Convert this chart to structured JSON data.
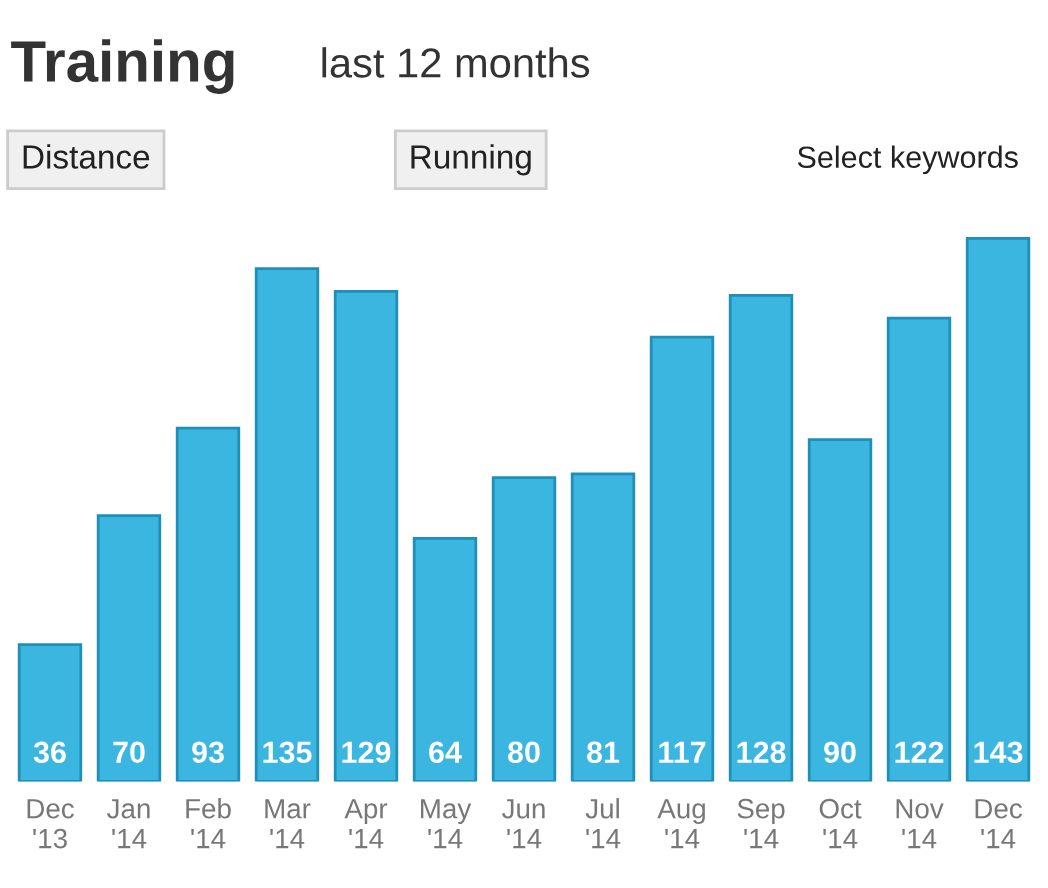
{
  "chart_data": {
    "type": "bar",
    "title": "Training",
    "subtitle": "last 12 months",
    "annotations": [
      "Distance",
      "Running",
      "Select keywords"
    ],
    "categories": [
      "Dec\n'13",
      "Jan\n'14",
      "Feb\n'14",
      "Mar\n'14",
      "Apr\n'14",
      "May\n'14",
      "Jun\n'14",
      "Jul\n'14",
      "Aug\n'14",
      "Sep\n'14",
      "Oct\n'14",
      "Nov\n'14",
      "Dec\n'14"
    ],
    "values": [
      36,
      70,
      93,
      135,
      129,
      64,
      80,
      81,
      117,
      128,
      90,
      122,
      143
    ],
    "color": "#3ab6e0",
    "data_labels": true
  }
}
